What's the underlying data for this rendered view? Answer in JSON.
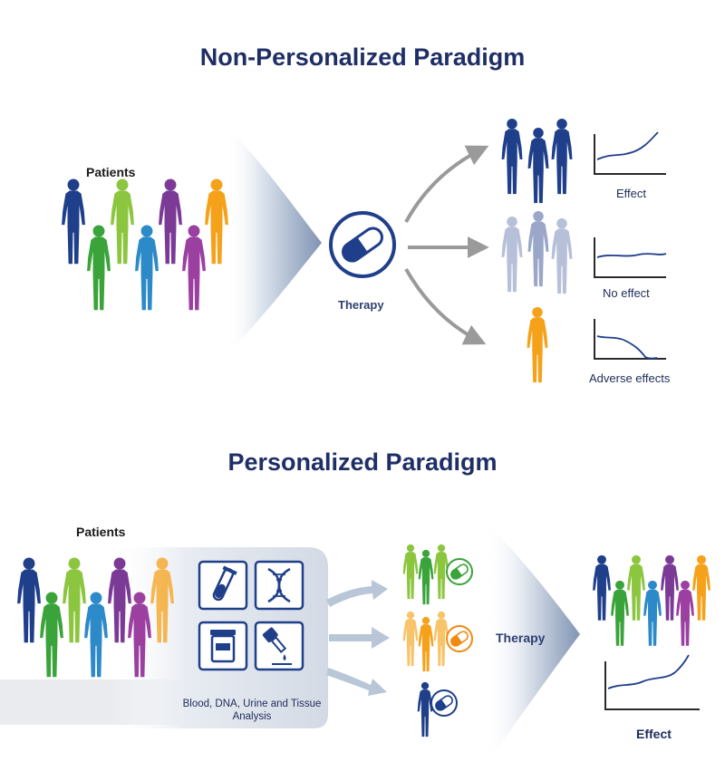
{
  "top": {
    "title": "Non-Personalized Paradigm",
    "patients_label": "Patients",
    "therapy_label": "Therapy",
    "outcomes": [
      {
        "label": "Effect",
        "color": "#1f3f8a"
      },
      {
        "label": "No effect",
        "color": "#9aa7c9"
      },
      {
        "label": "Adverse effects",
        "color": "#f5a21a"
      }
    ]
  },
  "bottom": {
    "title": "Personalized Paradigm",
    "patients_label": "Patients",
    "analysis_label": "Blood, DNA, Urine and Tissue Analysis",
    "analysis_icons": [
      "test-tube-icon",
      "dna-icon",
      "urine-cup-icon",
      "dropper-icon"
    ],
    "therapy_label": "Therapy",
    "result_label": "Effect",
    "groups": [
      {
        "color": "#3aa33a",
        "pill_color": "#3aa33a"
      },
      {
        "color": "#f5a21a",
        "pill_color": "#f08a10"
      },
      {
        "color": "#1f3f8a",
        "pill_color": "#1f3f8a"
      }
    ]
  },
  "palette": {
    "navy": "#1f3f8a",
    "green": "#3aa33a",
    "lime": "#8cc63f",
    "purple": "#7b3a96",
    "magenta": "#9b3fa1",
    "blue": "#2d8ac9",
    "orange": "#f5a21a",
    "text_dark": "#1f2f66",
    "arrow_gray": "#9a9a9a"
  }
}
